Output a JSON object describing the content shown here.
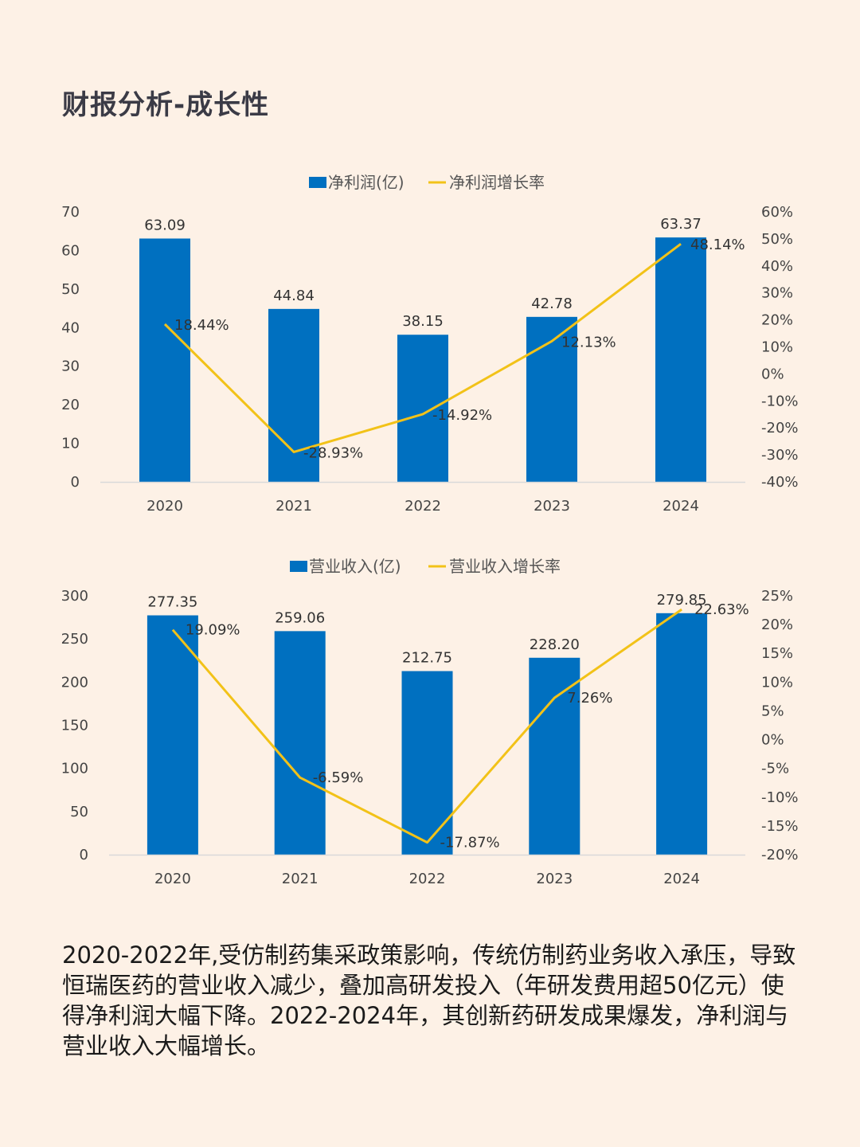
{
  "page": {
    "title": "财报分析-成长性",
    "summary": "2020-2022年,受仿制药集采政策影响，传统仿制药业务收入承压，导致恒瑞医药的营业收入减少，叠加高研发投入（年研发费用超50亿元）使得净利润大幅下降。2022-2024年，其创新药研发成果爆发，净利润与营业收入大幅增长。"
  },
  "colors": {
    "bar": "#0070c0",
    "line": "#f2c218",
    "axis": "#d9d9d9"
  },
  "chart_data": [
    {
      "type": "bar",
      "categories": [
        "2020",
        "2021",
        "2022",
        "2023",
        "2024"
      ],
      "series": [
        {
          "name": "净利润(亿)",
          "type": "bar",
          "axis": "left",
          "values": [
            63.09,
            44.84,
            38.15,
            42.78,
            63.37
          ],
          "labels": [
            "63.09",
            "44.84",
            "38.15",
            "42.78",
            "63.37"
          ]
        },
        {
          "name": "净利润增长率",
          "type": "line",
          "axis": "right",
          "values": [
            18.44,
            -28.93,
            -14.92,
            12.13,
            48.14
          ],
          "labels": [
            "18.44%",
            "-28.93%",
            "-14.92%",
            "12.13%",
            "48.14%"
          ]
        }
      ],
      "ylim": [
        0,
        70
      ],
      "y_ticks": [
        "0",
        "10",
        "20",
        "30",
        "40",
        "50",
        "60",
        "70"
      ],
      "y2lim": [
        -40,
        60
      ],
      "y2_ticks": [
        "-40%",
        "-30%",
        "-20%",
        "-10%",
        "0%",
        "10%",
        "20%",
        "30%",
        "40%",
        "50%",
        "60%"
      ],
      "legend": "top",
      "grid": false
    },
    {
      "type": "bar",
      "categories": [
        "2020",
        "2021",
        "2022",
        "2023",
        "2024"
      ],
      "series": [
        {
          "name": "营业收入(亿)",
          "type": "bar",
          "axis": "left",
          "values": [
            277.35,
            259.06,
            212.75,
            228.2,
            279.85
          ],
          "labels": [
            "277.35",
            "259.06",
            "212.75",
            "228.20",
            "279.85"
          ]
        },
        {
          "name": "营业收入增长率",
          "type": "line",
          "axis": "right",
          "values": [
            19.09,
            -6.59,
            -17.87,
            7.26,
            22.63
          ],
          "labels": [
            "19.09%",
            "-6.59%",
            "-17.87%",
            "7.26%",
            "22.63%"
          ]
        }
      ],
      "ylim": [
        0,
        300
      ],
      "y_ticks": [
        "0",
        "50",
        "100",
        "150",
        "200",
        "250",
        "300"
      ],
      "y2lim": [
        -20,
        25
      ],
      "y2_ticks": [
        "-20%",
        "-15%",
        "-10%",
        "-5%",
        "0%",
        "5%",
        "10%",
        "15%",
        "20%",
        "25%"
      ],
      "legend": "top",
      "grid": false
    }
  ]
}
